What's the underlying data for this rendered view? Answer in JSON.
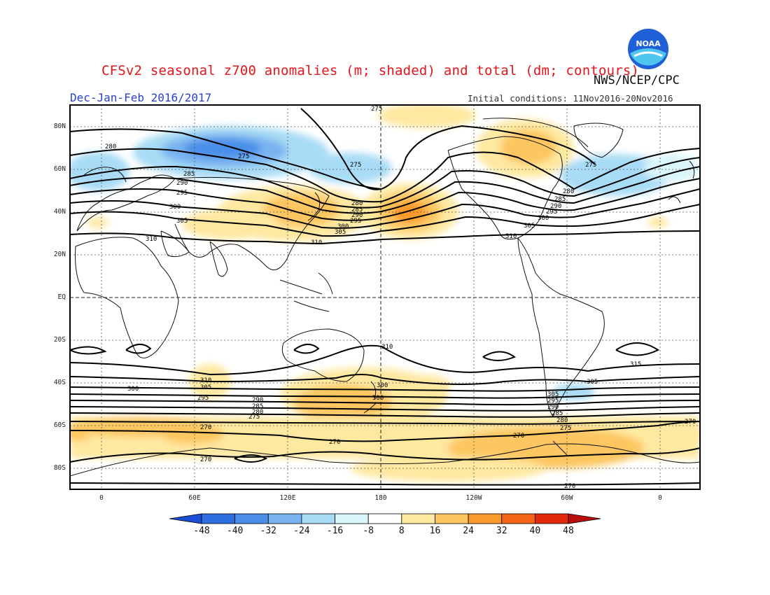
{
  "title": "CFSv2 seasonal z700 anomalies (m; shaded) and total (dm; contours)",
  "agency": "NWS/NCEP/CPC",
  "season": "Dec-Jan-Feb 2016/2017",
  "initial_conditions": "Initial conditions: 11Nov2016-20Nov2016",
  "logo_text": "NOAA",
  "lat_labels": [
    "80N",
    "60N",
    "40N",
    "20N",
    "EQ",
    "20S",
    "40S",
    "60S",
    "80S"
  ],
  "lon_labels": [
    "0",
    "60E",
    "120E",
    "180",
    "120W",
    "60W",
    "0"
  ],
  "colorbar": {
    "labels": [
      "-48",
      "-40",
      "-32",
      "-24",
      "-16",
      "-8",
      "8",
      "16",
      "24",
      "32",
      "40",
      "48"
    ],
    "colors": [
      "#1a4fd6",
      "#2e6fe0",
      "#4a8ee8",
      "#79b4f0",
      "#a8dbf5",
      "#d9f6fb",
      "#ffffff",
      "#ffe8a0",
      "#fdc660",
      "#f99a2c",
      "#f46414",
      "#e02a0a",
      "#b80f0a"
    ]
  },
  "contour_labels": {
    "north": [
      "275",
      "280",
      "275",
      "285",
      "290",
      "295",
      "300",
      "305",
      "310",
      "280",
      "285",
      "290",
      "295",
      "300",
      "305",
      "310",
      "275",
      "275",
      "280",
      "285",
      "290",
      "295",
      "300",
      "305",
      "310"
    ],
    "south": [
      "310",
      "305",
      "315",
      "310",
      "305",
      "300",
      "295",
      "290",
      "285",
      "280",
      "275",
      "270",
      "270",
      "270",
      "270",
      "270",
      "300",
      "305",
      "300",
      "295",
      "290",
      "285",
      "280",
      "275",
      "270"
    ]
  }
}
